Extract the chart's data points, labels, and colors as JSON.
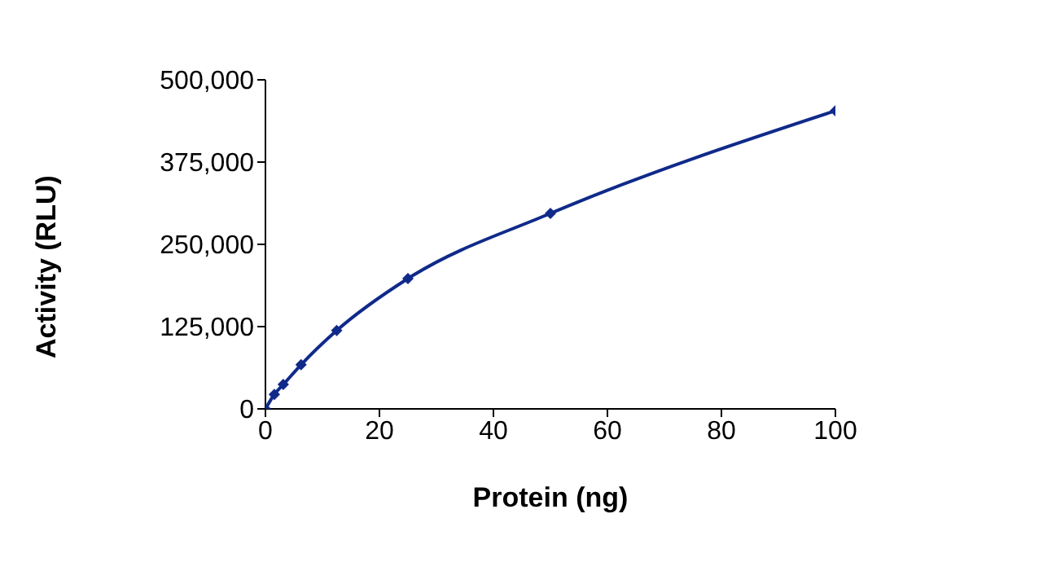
{
  "chart_data": {
    "type": "line",
    "xlabel": "Protein (ng)",
    "ylabel": "Activity (RLU)",
    "x": [
      0,
      1.5625,
      3.125,
      6.25,
      12.5,
      25,
      50,
      100
    ],
    "series": [
      {
        "color": "#102a8a",
        "values": [
          0,
          22000,
          37000,
          67000,
          119000,
          198000,
          297000,
          453000
        ]
      }
    ],
    "xlim": [
      0,
      100
    ],
    "xticks": [
      0,
      20,
      40,
      60,
      80,
      100
    ],
    "ylim": [
      0,
      500000
    ],
    "yticks": [
      {
        "value": 0,
        "label": "0"
      },
      {
        "value": 125000,
        "label": "125,000"
      },
      {
        "value": 250000,
        "label": "250,000"
      },
      {
        "value": 375000,
        "label": "375,000"
      },
      {
        "value": 500000,
        "label": "500,000"
      }
    ],
    "grid": false,
    "marker": "diamond",
    "line_style": "solid"
  }
}
